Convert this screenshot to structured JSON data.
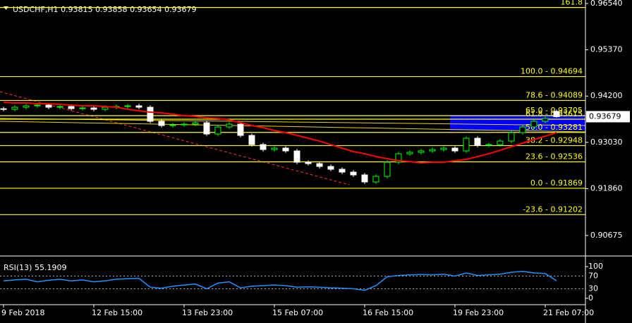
{
  "chart_data": [
    {
      "type": "candlestick",
      "title": "USDCHF,H1",
      "categories": [
        "9 Feb 2018",
        null,
        null,
        null,
        null,
        null,
        null,
        null,
        "12 Feb 15:00",
        null,
        null,
        null,
        null,
        null,
        null,
        null,
        "13 Feb 23:00",
        null,
        null,
        null,
        null,
        null,
        null,
        null,
        "15 Feb 07:00",
        null,
        null,
        null,
        null,
        null,
        null,
        null,
        "16 Feb 15:00",
        null,
        null,
        null,
        null,
        null,
        null,
        null,
        "19 Feb 23:00",
        null,
        null,
        null,
        null,
        null,
        null,
        null,
        "21 Feb 07:00",
        null
      ],
      "open": [
        0.9388,
        0.93865,
        0.93918,
        0.93954,
        0.93972,
        0.93918,
        0.93936,
        0.93883,
        0.939,
        0.93865,
        0.93918,
        0.93936,
        0.93954,
        0.93918,
        0.93562,
        0.93455,
        0.93472,
        0.9349,
        0.93526,
        0.93241,
        0.93419,
        0.9349,
        0.93205,
        0.92973,
        0.92848,
        0.92884,
        0.92813,
        0.92527,
        0.92492,
        0.9242,
        0.92349,
        0.92277,
        0.92206,
        0.92028,
        0.9217,
        0.92527,
        0.92741,
        0.92777,
        0.92813,
        0.92848,
        0.92884,
        0.92813,
        0.93134,
        0.92955,
        0.92973,
        0.93062,
        0.93276,
        0.93419,
        0.93562,
        0.93815
      ],
      "high": [
        0.9393,
        0.93968,
        0.94004,
        0.94022,
        0.94022,
        0.93986,
        0.93986,
        0.9395,
        0.9395,
        0.93968,
        0.93986,
        0.94004,
        0.94004,
        0.93968,
        0.93612,
        0.93522,
        0.9354,
        0.93576,
        0.93576,
        0.93469,
        0.9354,
        0.9354,
        0.93255,
        0.93023,
        0.92934,
        0.92934,
        0.92863,
        0.92577,
        0.92542,
        0.9247,
        0.92399,
        0.92327,
        0.92256,
        0.9222,
        0.92577,
        0.92791,
        0.92827,
        0.92863,
        0.92898,
        0.92934,
        0.92934,
        0.93184,
        0.93184,
        0.93023,
        0.93112,
        0.93326,
        0.93469,
        0.93612,
        0.93683,
        0.93858
      ],
      "low": [
        0.93815,
        0.93815,
        0.93868,
        0.93904,
        0.93868,
        0.93868,
        0.93833,
        0.93833,
        0.93815,
        0.93815,
        0.93868,
        0.93886,
        0.93868,
        0.93512,
        0.93405,
        0.93405,
        0.93422,
        0.9344,
        0.93191,
        0.93191,
        0.93369,
        0.93155,
        0.92923,
        0.92798,
        0.92798,
        0.92763,
        0.92477,
        0.92442,
        0.9237,
        0.92299,
        0.92227,
        0.92156,
        0.91978,
        0.91978,
        0.9212,
        0.92477,
        0.92691,
        0.92727,
        0.92763,
        0.92798,
        0.92763,
        0.92763,
        0.92905,
        0.92905,
        0.92923,
        0.93012,
        0.93226,
        0.93369,
        0.93512,
        0.93654
      ],
      "close": [
        0.93865,
        0.93918,
        0.93954,
        0.93972,
        0.93918,
        0.93936,
        0.93883,
        0.939,
        0.93865,
        0.93918,
        0.93936,
        0.93954,
        0.93918,
        0.93562,
        0.93455,
        0.93472,
        0.9349,
        0.93526,
        0.93241,
        0.93419,
        0.9349,
        0.93205,
        0.92973,
        0.92848,
        0.92884,
        0.92813,
        0.92527,
        0.92492,
        0.9242,
        0.92349,
        0.92277,
        0.92206,
        0.92028,
        0.9217,
        0.92527,
        0.92741,
        0.92777,
        0.92813,
        0.92848,
        0.92884,
        0.92813,
        0.93134,
        0.92955,
        0.92973,
        0.93062,
        0.93276,
        0.93419,
        0.93562,
        0.93633,
        0.93679
      ],
      "up_color": "#00ff00",
      "down_color": "#ffffff",
      "lines": [
        {
          "color": "#ff0000",
          "values": [
            0.94043,
            0.94025,
            0.94025,
            0.94007,
            0.94007,
            0.9399,
            0.93972,
            0.93954,
            0.93954,
            0.93936,
            0.93918,
            0.93865,
            0.93829,
            0.93793,
            0.93776,
            0.9374,
            0.93704,
            0.93686,
            0.93651,
            0.93633,
            0.93597,
            0.93526,
            0.93455,
            0.93401,
            0.9333,
            0.93276,
            0.93205,
            0.93134,
            0.93062,
            0.92973,
            0.92884,
            0.92795,
            0.92741,
            0.9267,
            0.92616,
            0.92563,
            0.92545,
            0.92509,
            0.92527,
            0.92527,
            0.92563,
            0.92599,
            0.9267,
            0.92741,
            0.9283,
            0.9292,
            0.93009,
            0.93098,
            0.93187,
            0.93276
          ]
        }
      ],
      "levels": [
        {
          "ratio": 161.8,
          "price": 0.9644,
          "label": "161.8"
        },
        {
          "ratio": 100.0,
          "price": 0.94694,
          "label": "100.0 - 0.94694"
        },
        {
          "ratio": 78.6,
          "price": 0.94089,
          "label": "78.6 - 0.94089"
        },
        {
          "ratio": 65.0,
          "price": 0.93705,
          "label": "65.0 - 0.93705"
        },
        {
          "ratio": 61.8,
          "price": 0.93615,
          "label": "61.8 - 0.93615"
        },
        {
          "ratio": 50.0,
          "price": 0.93281,
          "label": "50.0 - 0.93281"
        },
        {
          "ratio": 38.2,
          "price": 0.92948,
          "label": "38.2 - 0.92948"
        },
        {
          "ratio": 23.6,
          "price": 0.92536,
          "label": "23.6 - 0.92536"
        },
        {
          "ratio": 0.0,
          "price": 0.91869,
          "label": "0.0 - 0.91869"
        },
        {
          "ratio": -23.6,
          "price": 0.91202,
          "label": "-23.6 - 0.91202"
        }
      ],
      "level_color": "#ffff00",
      "ylim": [
        0.90173,
        0.9663
      ],
      "yticks": [
        {
          "value": 0.9654,
          "label": "0.96540"
        },
        {
          "value": 0.9537,
          "label": "0.95370"
        },
        {
          "value": 0.942,
          "label": "0.94200"
        },
        {
          "value": 0.9303,
          "label": "0.93030"
        },
        {
          "value": 0.9186,
          "label": "0.91860"
        },
        0.90675
      ]
    },
    {
      "type": "line",
      "title": "RSI(13)",
      "color": "#1e90ff",
      "values": [
        55,
        58,
        60,
        52,
        57,
        60,
        55,
        58,
        52,
        55,
        60,
        62,
        63,
        35,
        32,
        38,
        42,
        45,
        30,
        48,
        52,
        33,
        38,
        40,
        42,
        40,
        35,
        36,
        35,
        33,
        32,
        30,
        25,
        40,
        68,
        72,
        74,
        75,
        74,
        76,
        70,
        80,
        72,
        74,
        76,
        82,
        85,
        80,
        78,
        55.1909
      ],
      "ylim": [
        0,
        100
      ],
      "yticks": [
        100,
        70,
        30,
        0
      ]
    }
  ]
}
